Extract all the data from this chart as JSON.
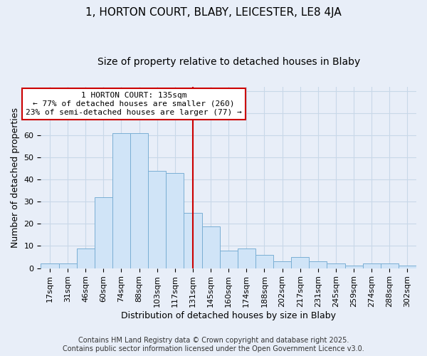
{
  "title": "1, HORTON COURT, BLABY, LEICESTER, LE8 4JA",
  "subtitle": "Size of property relative to detached houses in Blaby",
  "xlabel": "Distribution of detached houses by size in Blaby",
  "ylabel": "Number of detached properties",
  "categories": [
    "17sqm",
    "31sqm",
    "46sqm",
    "60sqm",
    "74sqm",
    "88sqm",
    "103sqm",
    "117sqm",
    "131sqm",
    "145sqm",
    "160sqm",
    "174sqm",
    "188sqm",
    "202sqm",
    "217sqm",
    "231sqm",
    "245sqm",
    "259sqm",
    "274sqm",
    "288sqm",
    "302sqm"
  ],
  "values": [
    2,
    2,
    9,
    32,
    61,
    61,
    44,
    43,
    25,
    19,
    8,
    9,
    6,
    3,
    5,
    3,
    2,
    1,
    2,
    2,
    1
  ],
  "bar_color": "#d0e4f7",
  "bar_edge_color": "#7aafd4",
  "marker_label": "1 HORTON COURT: 135sqm",
  "smaller_pct": "77% of detached houses are smaller (260)",
  "larger_pct": "23% of semi-detached houses are larger (77)",
  "annotation_box_color": "#ffffff",
  "annotation_box_edge": "#cc0000",
  "vline_color": "#cc0000",
  "grid_color": "#c8d8e8",
  "bg_color": "#e8eef8",
  "ylim": [
    0,
    82
  ],
  "title_fontsize": 11,
  "subtitle_fontsize": 10,
  "axis_label_fontsize": 9,
  "tick_fontsize": 8,
  "annot_fontsize": 8,
  "footnote_fontsize": 7,
  "footnote": "Contains HM Land Registry data © Crown copyright and database right 2025.\nContains public sector information licensed under the Open Government Licence v3.0."
}
